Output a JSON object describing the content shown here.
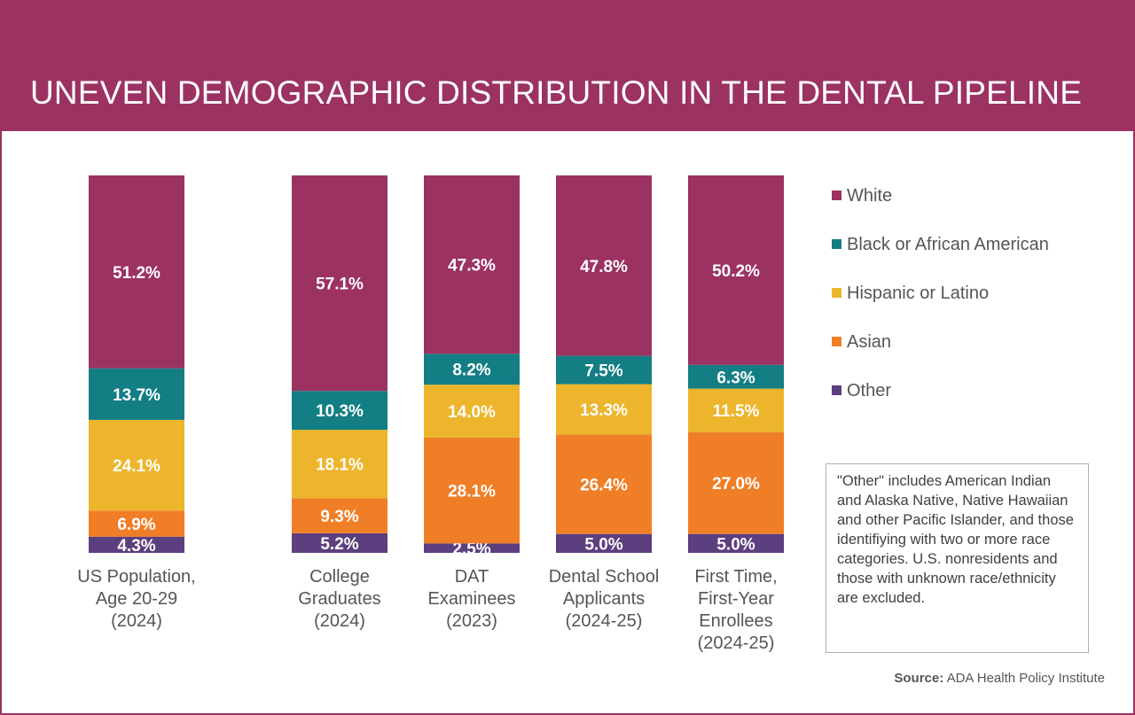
{
  "title": "UNEVEN DEMOGRAPHIC DISTRIBUTION IN THE DENTAL PIPELINE",
  "chart_data": {
    "type": "bar",
    "stacked": true,
    "normalized": true,
    "categories": [
      [
        "US Population,",
        "Age 20-29",
        "(2024)"
      ],
      [
        "College",
        "Graduates",
        "(2024)"
      ],
      [
        "DAT",
        "Examinees",
        "(2023)"
      ],
      [
        "Dental School",
        "Applicants",
        "(2024-25)"
      ],
      [
        "First Time,",
        "First-Year",
        "Enrollees",
        "(2024-25)"
      ]
    ],
    "series": [
      {
        "name": "White",
        "color": "#9b3262",
        "values": [
          51.2,
          57.1,
          47.3,
          47.8,
          50.2
        ],
        "labels": [
          "51.2%",
          "57.1%",
          "47.3%",
          "47.8%",
          "50.2%"
        ]
      },
      {
        "name": "Black or African American",
        "color": "#137e84",
        "values": [
          13.7,
          10.3,
          8.2,
          7.5,
          6.3
        ],
        "labels": [
          "13.7%",
          "10.3%",
          "8.2%",
          "7.5%",
          "6.3%"
        ]
      },
      {
        "name": "Hispanic or Latino",
        "color": "#ecb52b",
        "values": [
          24.1,
          18.1,
          14.0,
          13.3,
          11.5
        ],
        "labels": [
          "24.1%",
          "18.1%",
          "14.0%",
          "13.3%",
          "11.5%"
        ]
      },
      {
        "name": "Asian",
        "color": "#f07e26",
        "values": [
          6.9,
          9.3,
          28.1,
          26.4,
          27.0
        ],
        "labels": [
          "6.9%",
          "9.3%",
          "28.1%",
          "26.4%",
          "27.0%"
        ]
      },
      {
        "name": "Other",
        "color": "#5c3f7f",
        "values": [
          4.3,
          5.2,
          2.5,
          5.0,
          5.0
        ],
        "labels": [
          "4.3%",
          "5.2%",
          "2.5%",
          "5.0%",
          "5.0%"
        ]
      }
    ],
    "stack_order": "Other at bottom, then Asian, Hispanic or Latino, Black or African American, White at top",
    "legend_position": "right",
    "grid": false
  },
  "legend": {
    "items": [
      {
        "label": "White",
        "color": "#9b3262"
      },
      {
        "label": "Black or African American",
        "color": "#137e84"
      },
      {
        "label": "Hispanic or Latino",
        "color": "#ecb52b"
      },
      {
        "label": "Asian",
        "color": "#f07e26"
      },
      {
        "label": "Other",
        "color": "#5c3f7f"
      }
    ]
  },
  "note": "\"Other\" includes American Indian and Alaska Native, Native Hawaiian and other Pacific Islander, and those identifiying with two or more race categories. U.S. nonresidents and those with unknown race/ethnicity are excluded.",
  "source": {
    "label": "Source:",
    "text": "ADA Health Policy Institute"
  },
  "colors": {
    "banner": "#9b3262",
    "border": "#9b3262"
  }
}
